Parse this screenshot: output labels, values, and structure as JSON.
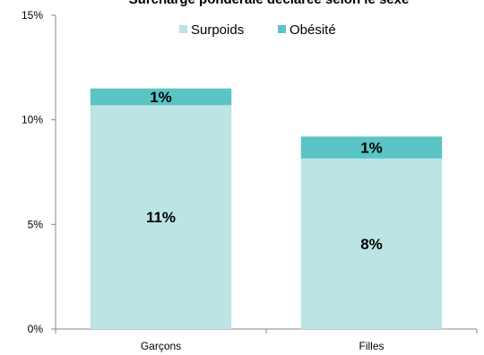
{
  "chart_data": {
    "type": "bar",
    "stacked": true,
    "title": "Surcharge pondérale déclarée selon le sexe",
    "categories": [
      "Garçons",
      "Filles"
    ],
    "series": [
      {
        "name": "Surpoids",
        "values": [
          10.7,
          8.15
        ],
        "labels": [
          "11%",
          "8%"
        ],
        "color": "#bce4e4"
      },
      {
        "name": "Obésité",
        "values": [
          0.8,
          1.05
        ],
        "labels": [
          "1%",
          "1%"
        ],
        "color": "#5bc4c4"
      }
    ],
    "ylim": [
      0,
      15
    ],
    "yticks": [
      0,
      5,
      10,
      15
    ],
    "ytick_labels": [
      "0%",
      "5%",
      "10%",
      "15%"
    ],
    "xlabel": "",
    "ylabel": "",
    "legend_position": "top",
    "grid": false
  }
}
